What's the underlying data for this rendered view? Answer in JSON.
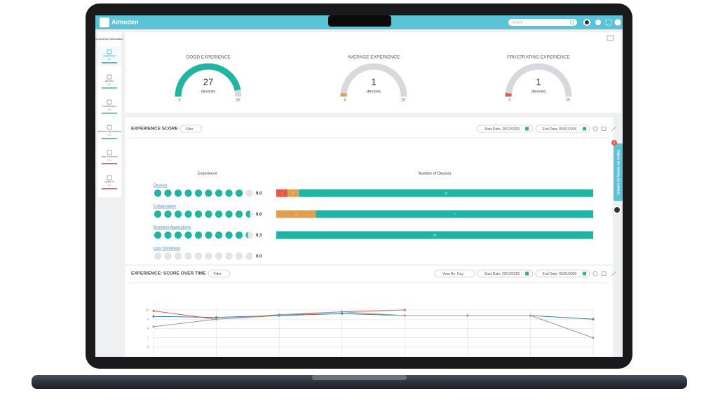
{
  "header": {
    "logo": "Aimoden",
    "search": "Search"
  },
  "sidebar": {
    "title": "Experience Optimization",
    "items": [
      {
        "label": "Experience",
        "score": "9.1"
      },
      {
        "label": "Devices",
        "score": "9.0"
      },
      {
        "label": "Collaboration",
        "score": "9.6"
      },
      {
        "label": "Business Applications",
        "score": "9.3"
      },
      {
        "label": "User Sentiment",
        "score": "0.0"
      },
      {
        "label": "Green IT",
        "score": "0.0"
      }
    ]
  },
  "gauges": [
    {
      "title": "GOOD EXPERIENCE",
      "value": 27,
      "unit": "devices",
      "min": 0,
      "max": 29,
      "color": "#1fb5a4"
    },
    {
      "title": "AVERAGE EXPERIENCE",
      "value": 1,
      "unit": "devices",
      "min": 0,
      "max": 29,
      "color": "#e0a050"
    },
    {
      "title": "FRUSTRATING EXPERIENCE",
      "value": 1,
      "unit": "devices",
      "min": 0,
      "max": 29,
      "color": "#e8584a"
    }
  ],
  "experience_score": {
    "title": "EXPERIENCE SCORE",
    "filter": "Filter",
    "start_date": "Start Date: 29/12/2025",
    "end_date": "End Date: 05/01/2026",
    "col_experience": "Experience",
    "col_devices": "Number of Devices",
    "rows": [
      {
        "label": "Devices",
        "score": 9.0,
        "score_label": "9.0",
        "segments": [
          {
            "value": 1,
            "color": "#e8584a"
          },
          {
            "value": 1,
            "color": "#e0a050"
          },
          {
            "value": 26,
            "color": "#1fb5a4"
          }
        ]
      },
      {
        "label": "Collaboration",
        "score": 9.6,
        "score_label": "9.6",
        "segments": [
          {
            "value": 1,
            "color": "#e0a050"
          },
          {
            "value": 7,
            "color": "#1fb5a4"
          }
        ]
      },
      {
        "label": "Business Applications",
        "score": 9.3,
        "score_label": "9.3",
        "segments": [
          {
            "value": 26,
            "color": "#1fb5a4"
          }
        ]
      },
      {
        "label": "User Sentiment",
        "score": 0.0,
        "score_label": "0.0",
        "segments": []
      }
    ]
  },
  "issues_tab": {
    "label": "Issues to focus on today",
    "badge": "1"
  },
  "score_over_time": {
    "title": "EXPERIENCE: SCORE OVER TIME",
    "filter": "Filter",
    "view_by": "View By: Day",
    "start_date": "Start Date: 29/12/2025",
    "end_date": "End Date: 05/01/2026",
    "chart_data": {
      "type": "line",
      "categories": [
        null,
        null,
        null,
        null,
        null,
        null,
        null,
        null
      ],
      "ylim": [
        6,
        10
      ],
      "yticks": [
        6,
        7,
        8,
        9,
        10
      ],
      "grid": true,
      "series": [
        {
          "color": "#e8584a",
          "values": [
            9.9,
            9.0,
            9.4,
            9.8,
            10.0,
            null,
            null,
            null
          ]
        },
        {
          "color": "#2a7fb0",
          "values": [
            9.3,
            9.2,
            9.4,
            9.6,
            9.4,
            9.4,
            9.4,
            9.0
          ]
        },
        {
          "color": "#999999",
          "values": [
            8.2,
            9.0,
            9.5,
            9.8,
            9.4,
            9.4,
            9.4,
            7.0
          ]
        }
      ]
    }
  }
}
